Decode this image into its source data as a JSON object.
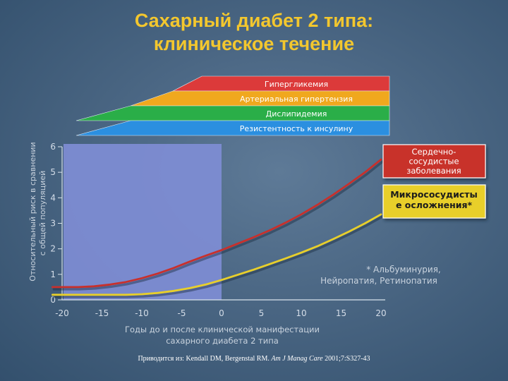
{
  "title_line1": "Сахарный диабет 2 типа:",
  "title_line2": "клиническое течение",
  "bands": [
    {
      "label": "Гипергликемия",
      "color": "#dc3a3a"
    },
    {
      "label": "Артериальная гипертензия",
      "color": "#f0a81e"
    },
    {
      "label": "Дислипидемия",
      "color": "#2aae48"
    },
    {
      "label": "Резистентность к инсулину",
      "color": "#2b8fe0"
    }
  ],
  "chart_data": {
    "type": "line",
    "ylabel_line1": "Относительный риск в сравнении",
    "ylabel_line2": "с общей популяцией",
    "xlabel_line1": "Годы до и после клинической манифестации",
    "xlabel_line2": "сахарного диабета 2 типа",
    "xlim": [
      -20,
      20
    ],
    "ylim": [
      0,
      6
    ],
    "x_ticks": [
      "-20",
      "-15",
      "-10",
      "-5",
      "0",
      "5",
      "10",
      "15",
      "20"
    ],
    "y_ticks": [
      "0",
      "1",
      "2",
      "3",
      "4",
      "5",
      "6"
    ],
    "shaded_region": [
      -20,
      0
    ],
    "series": [
      {
        "name": "Сердечно-сосудистые заболевания",
        "color": "#c8302c",
        "x": [
          -22,
          -20,
          -18,
          -16,
          -14,
          -12,
          -10,
          -8,
          -6,
          -4,
          -2,
          0,
          2,
          4,
          6,
          8,
          10,
          12,
          14,
          16,
          18,
          20
        ],
        "y": [
          0.5,
          0.5,
          0.5,
          0.53,
          0.6,
          0.7,
          0.85,
          1.03,
          1.25,
          1.5,
          1.73,
          1.95,
          2.2,
          2.45,
          2.72,
          3.02,
          3.35,
          3.72,
          4.12,
          4.55,
          5.0,
          5.5
        ]
      },
      {
        "name": "Микрососудистые осложнения*",
        "color": "#e8cf2a",
        "x": [
          -22,
          -20,
          -16,
          -12,
          -10,
          -8,
          -6,
          -4,
          -2,
          0,
          2,
          4,
          6,
          8,
          10,
          12,
          14,
          16,
          18,
          20
        ],
        "y": [
          0.2,
          0.2,
          0.2,
          0.2,
          0.22,
          0.27,
          0.35,
          0.46,
          0.6,
          0.78,
          0.98,
          1.18,
          1.4,
          1.62,
          1.85,
          2.1,
          2.38,
          2.68,
          3.0,
          3.35
        ]
      }
    ],
    "annotations": [
      {
        "text_lines": [
          "Сердечно-",
          "сосудистые",
          "заболевания"
        ],
        "color": "#c8302c"
      },
      {
        "text_lines": [
          "Микрососудисты",
          "е осложнения*"
        ],
        "color": "#e8cf2a"
      }
    ],
    "footnote_lines": [
      "* Альбуминурия,",
      "Нейропатия, Ретинопатия"
    ]
  },
  "caption": {
    "prefix": "Приводится из: Kendall DM, Bergenstal RM. ",
    "journal": "Am J Manag Care",
    "suffix": " 2001;7:S327-43"
  }
}
